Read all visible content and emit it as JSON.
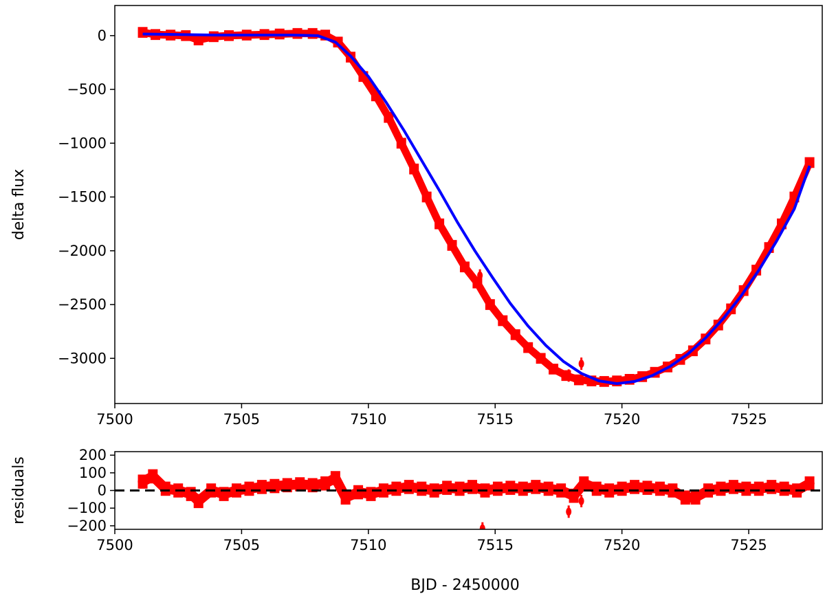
{
  "chart_data": [
    {
      "type": "line",
      "panel": "main",
      "ylabel": "delta flux",
      "xlim": [
        7500.0,
        7527.9
      ],
      "ylim": [
        -3420,
        280
      ],
      "xticks": [
        7500,
        7505,
        7510,
        7515,
        7520,
        7525
      ],
      "xtick_labels": [
        "7500",
        "7505",
        "7510",
        "7515",
        "7520",
        "7525"
      ],
      "yticks": [
        0,
        -500,
        -1000,
        -1500,
        -2000,
        -2500,
        -3000
      ],
      "ytick_labels": [
        "0",
        "−500",
        "−1000",
        "−1500",
        "−2000",
        "−2500",
        "−3000"
      ],
      "grid": false,
      "colors": {
        "data": "#ff0000",
        "model": "#0000ff"
      },
      "series": [
        {
          "role": "data-with-errorbars",
          "x": [
            7501.1,
            7501.6,
            7502.2,
            7502.8,
            7503.3,
            7503.9,
            7504.5,
            7505.2,
            7505.9,
            7506.5,
            7507.2,
            7507.8,
            7508.3,
            7508.8,
            7509.3,
            7509.8,
            7510.3,
            7510.8,
            7511.3,
            7511.8,
            7512.3,
            7512.8,
            7513.3,
            7513.8,
            7514.3,
            7514.8,
            7515.3,
            7515.8,
            7516.3,
            7516.8,
            7517.3,
            7517.8,
            7518.3,
            7518.8,
            7519.3,
            7519.8,
            7520.3,
            7520.8,
            7521.3,
            7521.8,
            7522.3,
            7522.8,
            7523.3,
            7523.8,
            7524.3,
            7524.8,
            7525.3,
            7525.8,
            7526.3,
            7526.8,
            7527.4
          ],
          "y": [
            30,
            10,
            5,
            0,
            -40,
            -10,
            0,
            5,
            10,
            15,
            20,
            20,
            5,
            -60,
            -200,
            -380,
            -560,
            -760,
            -1000,
            -1240,
            -1500,
            -1750,
            -1950,
            -2150,
            -2300,
            -2500,
            -2650,
            -2780,
            -2900,
            -3000,
            -3100,
            -3160,
            -3200,
            -3210,
            -3215,
            -3210,
            -3195,
            -3170,
            -3130,
            -3080,
            -3010,
            -2930,
            -2820,
            -2690,
            -2540,
            -2370,
            -2180,
            -1970,
            -1750,
            -1500,
            -1180
          ],
          "errorbar_halfwidth": 50
        },
        {
          "role": "model",
          "x": [
            7501.1,
            7502.5,
            7504.0,
            7505.5,
            7507.0,
            7508.0,
            7508.7,
            7509.3,
            7510.0,
            7510.7,
            7511.4,
            7512.1,
            7512.8,
            7513.5,
            7514.2,
            7514.9,
            7515.6,
            7516.3,
            7517.0,
            7517.7,
            7518.4,
            7519.1,
            7519.8,
            7520.5,
            7521.2,
            7521.9,
            7522.6,
            7523.3,
            7524.0,
            7524.7,
            7525.4,
            7526.1,
            7526.8,
            7527.4
          ],
          "y": [
            15,
            10,
            5,
            5,
            5,
            0,
            -60,
            -190,
            -380,
            -620,
            -880,
            -1160,
            -1440,
            -1730,
            -2000,
            -2250,
            -2490,
            -2700,
            -2880,
            -3030,
            -3140,
            -3210,
            -3235,
            -3215,
            -3160,
            -3075,
            -2960,
            -2810,
            -2630,
            -2420,
            -2180,
            -1910,
            -1610,
            -1210
          ]
        }
      ],
      "outliers": [
        {
          "x": 7514.4,
          "y": -2230
        },
        {
          "x": 7517.9,
          "y": -3160
        },
        {
          "x": 7518.4,
          "y": -3050
        }
      ]
    },
    {
      "type": "line",
      "panel": "residuals",
      "xlabel": "BJD - 2450000",
      "ylabel": "residuals",
      "xlim": [
        7500.0,
        7527.9
      ],
      "ylim": [
        -220,
        220
      ],
      "xticks": [
        7500,
        7505,
        7510,
        7515,
        7520,
        7525
      ],
      "xtick_labels": [
        "7500",
        "7505",
        "7510",
        "7515",
        "7520",
        "7525"
      ],
      "yticks": [
        200,
        100,
        0,
        -100,
        -200
      ],
      "ytick_labels": [
        "200",
        "100",
        "0",
        "−100",
        "−200"
      ],
      "grid": false,
      "zero_line": {
        "y": 0,
        "style": "dashed",
        "color": "#000000"
      },
      "series": [
        {
          "role": "residuals-with-errorbars",
          "x": [
            7501.1,
            7501.5,
            7502.0,
            7502.5,
            7503.0,
            7503.3,
            7503.8,
            7504.3,
            7504.8,
            7505.3,
            7505.8,
            7506.3,
            7506.8,
            7507.3,
            7507.8,
            7508.3,
            7508.7,
            7509.1,
            7509.6,
            7510.1,
            7510.6,
            7511.1,
            7511.6,
            7512.1,
            7512.6,
            7513.1,
            7513.6,
            7514.1,
            7514.6,
            7515.1,
            7515.6,
            7516.1,
            7516.6,
            7517.1,
            7517.6,
            7518.1,
            7518.5,
            7519.0,
            7519.5,
            7520.0,
            7520.5,
            7521.0,
            7521.5,
            7522.0,
            7522.5,
            7522.9,
            7523.4,
            7523.9,
            7524.4,
            7524.9,
            7525.4,
            7525.9,
            7526.4,
            7526.9,
            7527.4
          ],
          "y": [
            50,
            80,
            10,
            0,
            -20,
            -60,
            0,
            -20,
            0,
            10,
            20,
            25,
            30,
            35,
            30,
            40,
            70,
            -40,
            -10,
            -20,
            0,
            10,
            20,
            10,
            0,
            15,
            10,
            20,
            0,
            10,
            15,
            10,
            20,
            10,
            0,
            -30,
            40,
            10,
            0,
            10,
            20,
            15,
            10,
            0,
            -40,
            -40,
            0,
            10,
            20,
            10,
            10,
            20,
            10,
            0,
            40
          ],
          "errorbar_halfwidth": 40
        }
      ],
      "outliers": [
        {
          "x": 7514.5,
          "y": -215
        },
        {
          "x": 7517.9,
          "y": -120
        },
        {
          "x": 7518.4,
          "y": -60
        }
      ]
    }
  ]
}
